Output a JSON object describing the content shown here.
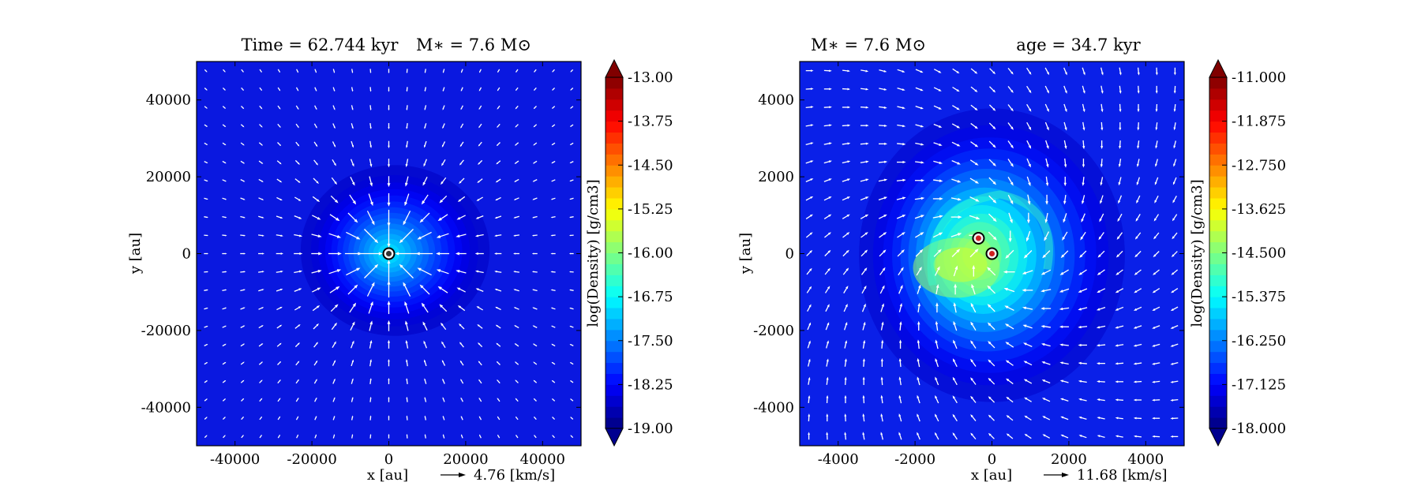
{
  "panels": [
    {
      "title_left": "Time = 62.744 kyr",
      "title_right": "M∗ = 7.6 M⊙",
      "xlabel": "x [au]",
      "ylabel": "y [au]",
      "quiver_key": "4.76 [km/s]",
      "colorbar_label": "log(Density) [g/cm3]"
    },
    {
      "title_left": "M∗ = 7.6 M⊙",
      "title_right": "age = 34.7 kyr",
      "xlabel": "x [au]",
      "ylabel": "y [au]",
      "quiver_key": "11.68 [km/s]",
      "colorbar_label": "log(Density) [g/cm3]"
    }
  ],
  "chart_data": [
    {
      "type": "heatmap",
      "title": "Time = 62.744 kyr    M∗ = 7.6 M⊙",
      "xlabel": "x [au]",
      "ylabel": "y [au]",
      "xlim": [
        -50000,
        50000
      ],
      "ylim": [
        -50000,
        50000
      ],
      "xticks": [
        -40000,
        -20000,
        0,
        20000,
        40000
      ],
      "yticks": [
        -40000,
        -20000,
        0,
        20000,
        40000
      ],
      "colorbar": {
        "label": "log(Density) [g/cm3]",
        "min": -19.0,
        "max": -13.0,
        "ticks": [
          "-13.00",
          "-13.75",
          "-14.50",
          "-15.25",
          "-16.00",
          "-16.75",
          "-17.50",
          "-18.25",
          "-19.00"
        ],
        "colormap": "jet",
        "extend": "both"
      },
      "quiver_key": "4.76 [km/s]",
      "sinks": [
        {
          "x": 0,
          "y": 0
        }
      ],
      "density_background": -18.6,
      "density_peak": -16.9,
      "core_width": 9000,
      "flow": "infall"
    },
    {
      "type": "heatmap",
      "title": "M∗ = 7.6 M⊙        age = 34.7 kyr",
      "xlabel": "x [au]",
      "ylabel": "y [au]",
      "xlim": [
        -5000,
        5000
      ],
      "ylim": [
        -5000,
        5000
      ],
      "xticks": [
        -4000,
        -2000,
        0,
        2000,
        4000
      ],
      "yticks": [
        -4000,
        -2000,
        0,
        2000,
        4000
      ],
      "colorbar": {
        "label": "log(Density) [g/cm3]",
        "min": -18.0,
        "max": -11.0,
        "ticks": [
          "-11.000",
          "-11.875",
          "-12.750",
          "-13.625",
          "-14.500",
          "-15.375",
          "-16.250",
          "-17.125",
          "-18.000"
        ],
        "colormap": "jet",
        "extend": "both"
      },
      "quiver_key": "11.68 [km/s]",
      "sinks": [
        {
          "x": -350,
          "y": 400
        },
        {
          "x": 0,
          "y": 0
        }
      ],
      "density_background": -17.5,
      "density_peak": -14.2,
      "core_width": 1400,
      "flow": "swirl"
    }
  ]
}
